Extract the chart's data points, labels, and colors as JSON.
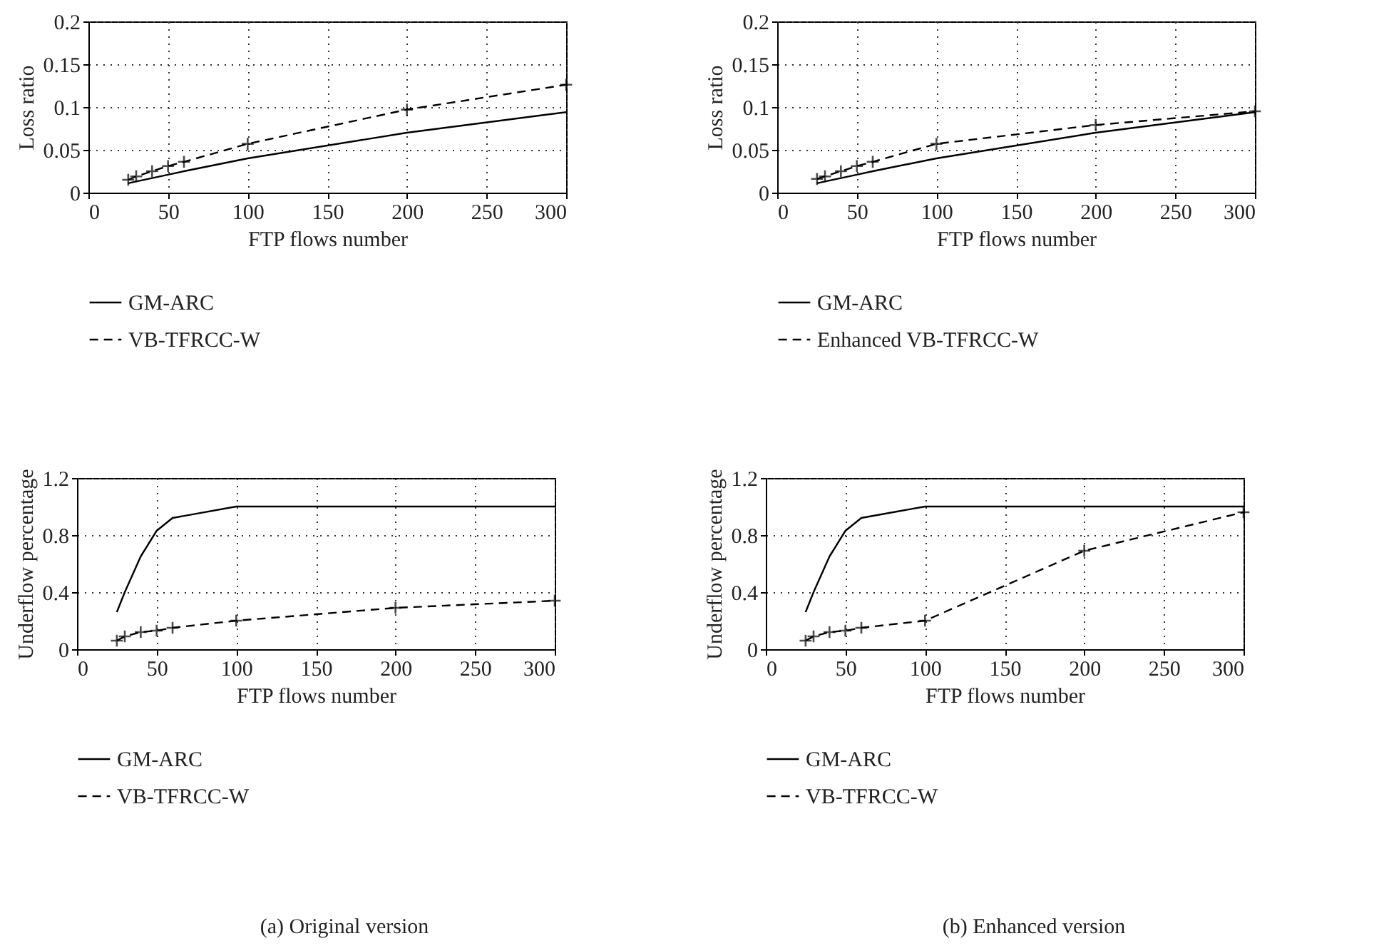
{
  "chart_data": [
    {
      "type": "line",
      "xlabel": "FTP flows number",
      "ylabel": "Loss ratio",
      "x": [
        25,
        30,
        40,
        50,
        60,
        100,
        200,
        300
      ],
      "xlim": [
        0,
        300
      ],
      "xticks": [
        0,
        50,
        100,
        150,
        200,
        250,
        300
      ],
      "ylim": [
        0,
        0.2
      ],
      "yticks": [
        0,
        0.05,
        0.1,
        0.15,
        0.2
      ],
      "grid": true,
      "legend": "bottom",
      "series": [
        {
          "name": "GM-ARC",
          "color": "#000000",
          "line_style": "solid",
          "marker": "none",
          "values": [
            0.011,
            0.013,
            0.017,
            0.021,
            0.025,
            0.04,
            0.07,
            0.094
          ]
        },
        {
          "name": "VB-TFRCC-W",
          "color": "#000000",
          "line_style": "dashed",
          "marker": "cross",
          "values": [
            0.015,
            0.019,
            0.025,
            0.031,
            0.036,
            0.057,
            0.097,
            0.126
          ]
        }
      ]
    },
    {
      "type": "line",
      "xlabel": "FTP flows number",
      "ylabel": "Loss ratio",
      "x": [
        25,
        30,
        40,
        50,
        60,
        100,
        200,
        300
      ],
      "xlim": [
        0,
        300
      ],
      "xticks": [
        0,
        50,
        100,
        150,
        200,
        250,
        300
      ],
      "ylim": [
        0,
        0.2
      ],
      "yticks": [
        0,
        0.05,
        0.1,
        0.15,
        0.2
      ],
      "grid": true,
      "legend": "bottom",
      "series": [
        {
          "name": "GM-ARC",
          "color": "#000000",
          "line_style": "solid",
          "marker": "none",
          "values": [
            0.011,
            0.013,
            0.017,
            0.021,
            0.025,
            0.04,
            0.07,
            0.094
          ]
        },
        {
          "name": "Enhanced VB-TFRCC-W",
          "color": "#000000",
          "line_style": "dashed",
          "marker": "cross",
          "values": [
            0.016,
            0.019,
            0.025,
            0.031,
            0.036,
            0.057,
            0.079,
            0.095
          ]
        }
      ]
    },
    {
      "type": "line",
      "xlabel": "FTP flows number",
      "ylabel": "Underflow percentage",
      "x": [
        25,
        30,
        40,
        50,
        60,
        100,
        200,
        300
      ],
      "xlim": [
        0,
        300
      ],
      "xticks": [
        0,
        50,
        100,
        150,
        200,
        250,
        300
      ],
      "ylim": [
        0,
        1.2
      ],
      "yticks": [
        0,
        0.4,
        0.8,
        1.2
      ],
      "grid": true,
      "legend": "bottom",
      "annotations": [
        "(a) Original version"
      ],
      "series": [
        {
          "name": "GM-ARC",
          "color": "#000000",
          "line_style": "solid",
          "marker": "none",
          "values": [
            0.26,
            0.4,
            0.65,
            0.83,
            0.92,
            1.0,
            1.0,
            1.0
          ]
        },
        {
          "name": "VB-TFRCC-W",
          "color": "#000000",
          "line_style": "dashed",
          "marker": "cross",
          "values": [
            0.06,
            0.09,
            0.12,
            0.13,
            0.15,
            0.2,
            0.29,
            0.34
          ]
        }
      ]
    },
    {
      "type": "line",
      "xlabel": "FTP flows number",
      "ylabel": "Underflow percentage",
      "x": [
        25,
        30,
        40,
        50,
        60,
        100,
        200,
        300
      ],
      "xlim": [
        0,
        300
      ],
      "xticks": [
        0,
        50,
        100,
        150,
        200,
        250,
        300
      ],
      "ylim": [
        0,
        1.2
      ],
      "yticks": [
        0,
        0.4,
        0.8,
        1.2
      ],
      "grid": true,
      "legend": "bottom",
      "annotations": [
        "(b) Enhanced version"
      ],
      "series": [
        {
          "name": "GM-ARC",
          "color": "#000000",
          "line_style": "solid",
          "marker": "none",
          "values": [
            0.26,
            0.4,
            0.65,
            0.83,
            0.92,
            1.0,
            1.0,
            1.0
          ]
        },
        {
          "name": "VB-TFRCC-W",
          "color": "#000000",
          "line_style": "dashed",
          "marker": "cross",
          "values": [
            0.06,
            0.09,
            0.12,
            0.13,
            0.15,
            0.2,
            0.69,
            0.96
          ]
        }
      ]
    }
  ]
}
